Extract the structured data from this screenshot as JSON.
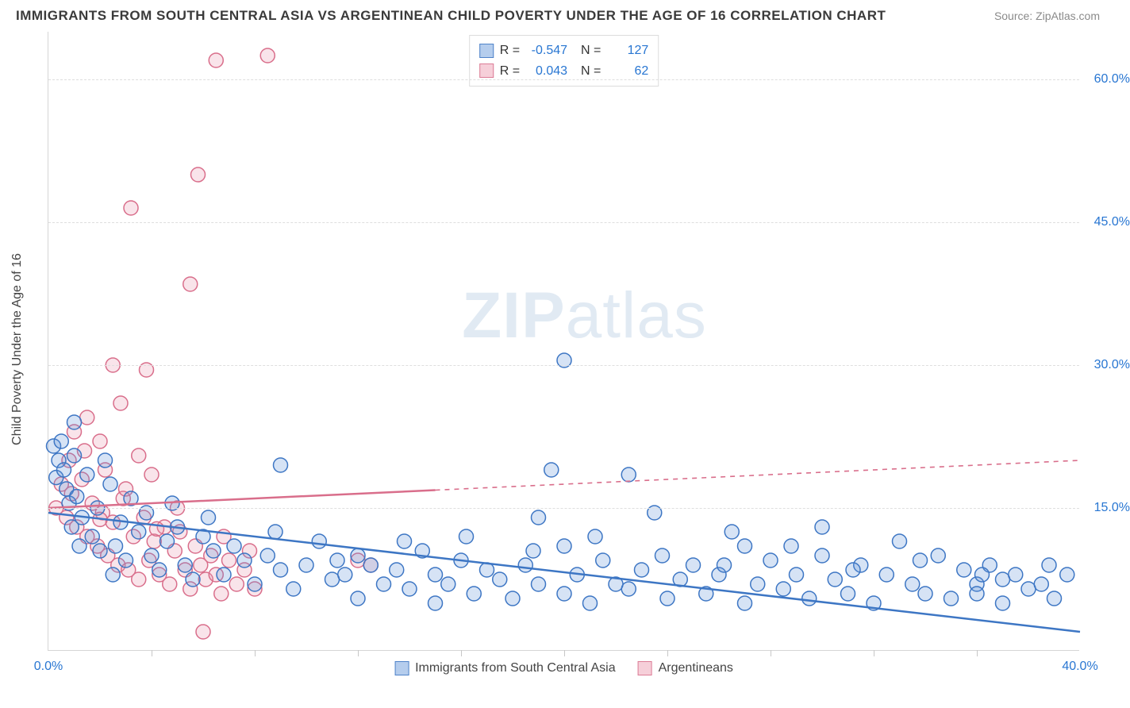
{
  "title": "IMMIGRANTS FROM SOUTH CENTRAL ASIA VS ARGENTINEAN CHILD POVERTY UNDER THE AGE OF 16 CORRELATION CHART",
  "source": "Source: ZipAtlas.com",
  "watermark_a": "ZIP",
  "watermark_b": "atlas",
  "chart": {
    "type": "scatter",
    "background_color": "#ffffff",
    "grid_color": "#dedede",
    "axis_color": "#d6d6d6",
    "ylabel": "Child Poverty Under the Age of 16",
    "ylabel_fontsize": 16,
    "xlim": [
      0,
      40
    ],
    "ylim": [
      0,
      65
    ],
    "y_ticks": [
      15,
      30,
      45,
      60
    ],
    "y_tick_labels": [
      "15.0%",
      "30.0%",
      "45.0%",
      "60.0%"
    ],
    "y_tick_color": "#2876d2",
    "x_min_label": "0.0%",
    "x_max_label": "40.0%",
    "x_label_color": "#2876d2",
    "x_minor_ticks": [
      4,
      8,
      12,
      16,
      20,
      24,
      28,
      32,
      36
    ],
    "marker_radius": 9,
    "marker_stroke_width": 1.5,
    "marker_fill_opacity": 0.25,
    "series": [
      {
        "id": "s1",
        "label": "Immigrants from South Central Asia",
        "color": "#5a8fd6",
        "stroke": "#3d76c4",
        "R": "-0.547",
        "N": "127",
        "trend": {
          "x1": 0,
          "y1": 14.5,
          "x2": 40,
          "y2": 2.0,
          "solid_until_x": 40
        },
        "points": [
          [
            0.2,
            21.5
          ],
          [
            0.3,
            18.2
          ],
          [
            0.4,
            20.0
          ],
          [
            0.5,
            22.0
          ],
          [
            0.6,
            19.0
          ],
          [
            0.7,
            17.0
          ],
          [
            0.8,
            15.5
          ],
          [
            0.9,
            13.0
          ],
          [
            1.0,
            20.5
          ],
          [
            1.1,
            16.2
          ],
          [
            1.3,
            14.0
          ],
          [
            1.5,
            18.5
          ],
          [
            1.7,
            12.0
          ],
          [
            1.9,
            15.0
          ],
          [
            2.0,
            10.5
          ],
          [
            2.2,
            20.0
          ],
          [
            2.4,
            17.5
          ],
          [
            2.6,
            11.0
          ],
          [
            2.8,
            13.5
          ],
          [
            3.0,
            9.5
          ],
          [
            3.2,
            16.0
          ],
          [
            3.5,
            12.5
          ],
          [
            3.8,
            14.5
          ],
          [
            4.0,
            10.0
          ],
          [
            4.3,
            8.5
          ],
          [
            4.6,
            11.5
          ],
          [
            5.0,
            13.0
          ],
          [
            5.3,
            9.0
          ],
          [
            5.6,
            7.5
          ],
          [
            6.0,
            12.0
          ],
          [
            6.4,
            10.5
          ],
          [
            6.8,
            8.0
          ],
          [
            7.2,
            11.0
          ],
          [
            7.6,
            9.5
          ],
          [
            8.0,
            7.0
          ],
          [
            8.5,
            10.0
          ],
          [
            9.0,
            8.5
          ],
          [
            9.0,
            19.5
          ],
          [
            9.5,
            6.5
          ],
          [
            10.0,
            9.0
          ],
          [
            10.5,
            11.5
          ],
          [
            11.0,
            7.5
          ],
          [
            11.5,
            8.0
          ],
          [
            12.0,
            10.0
          ],
          [
            12.0,
            5.5
          ],
          [
            12.5,
            9.0
          ],
          [
            13.0,
            7.0
          ],
          [
            13.5,
            8.5
          ],
          [
            14.0,
            6.5
          ],
          [
            14.5,
            10.5
          ],
          [
            15.0,
            8.0
          ],
          [
            15.0,
            5.0
          ],
          [
            15.5,
            7.0
          ],
          [
            16.0,
            9.5
          ],
          [
            16.5,
            6.0
          ],
          [
            17.0,
            8.5
          ],
          [
            17.5,
            7.5
          ],
          [
            18.0,
            5.5
          ],
          [
            18.5,
            9.0
          ],
          [
            19.0,
            7.0
          ],
          [
            19.0,
            14.0
          ],
          [
            19.5,
            19.0
          ],
          [
            20.0,
            6.0
          ],
          [
            20.0,
            11.0
          ],
          [
            20.5,
            8.0
          ],
          [
            21.0,
            5.0
          ],
          [
            21.5,
            9.5
          ],
          [
            20.0,
            30.5
          ],
          [
            22.0,
            7.0
          ],
          [
            22.5,
            18.5
          ],
          [
            22.5,
            6.5
          ],
          [
            23.0,
            8.5
          ],
          [
            23.5,
            14.5
          ],
          [
            24.0,
            5.5
          ],
          [
            24.5,
            7.5
          ],
          [
            25.0,
            9.0
          ],
          [
            25.5,
            6.0
          ],
          [
            26.0,
            8.0
          ],
          [
            26.5,
            12.5
          ],
          [
            27.0,
            5.0
          ],
          [
            27.0,
            11.0
          ],
          [
            27.5,
            7.0
          ],
          [
            28.0,
            9.5
          ],
          [
            28.5,
            6.5
          ],
          [
            29.0,
            8.0
          ],
          [
            29.5,
            5.5
          ],
          [
            30.0,
            10.0
          ],
          [
            30.0,
            13.0
          ],
          [
            30.5,
            7.5
          ],
          [
            31.0,
            6.0
          ],
          [
            31.5,
            9.0
          ],
          [
            32.0,
            5.0
          ],
          [
            32.5,
            8.0
          ],
          [
            33.0,
            11.5
          ],
          [
            33.5,
            7.0
          ],
          [
            34.0,
            6.0
          ],
          [
            34.5,
            10.0
          ],
          [
            35.0,
            5.5
          ],
          [
            35.5,
            8.5
          ],
          [
            36.0,
            7.0
          ],
          [
            36.0,
            6.0
          ],
          [
            36.5,
            9.0
          ],
          [
            37.0,
            5.0
          ],
          [
            37.0,
            7.5
          ],
          [
            37.5,
            8.0
          ],
          [
            38.0,
            6.5
          ],
          [
            38.5,
            7.0
          ],
          [
            39.0,
            5.5
          ],
          [
            39.5,
            8.0
          ],
          [
            1.0,
            24.0
          ],
          [
            1.2,
            11.0
          ],
          [
            2.5,
            8.0
          ],
          [
            4.8,
            15.5
          ],
          [
            6.2,
            14.0
          ],
          [
            8.8,
            12.5
          ],
          [
            11.2,
            9.5
          ],
          [
            13.8,
            11.5
          ],
          [
            16.2,
            12.0
          ],
          [
            18.8,
            10.5
          ],
          [
            21.2,
            12.0
          ],
          [
            23.8,
            10.0
          ],
          [
            26.2,
            9.0
          ],
          [
            28.8,
            11.0
          ],
          [
            31.2,
            8.5
          ],
          [
            33.8,
            9.5
          ],
          [
            36.2,
            8.0
          ],
          [
            38.8,
            9.0
          ]
        ]
      },
      {
        "id": "s2",
        "label": "Argentineans",
        "color": "#e994aa",
        "stroke": "#d96e8b",
        "R": "0.043",
        "N": "62",
        "trend": {
          "x1": 0,
          "y1": 15.0,
          "x2": 40,
          "y2": 20.0,
          "solid_until_x": 15
        },
        "points": [
          [
            0.3,
            15.0
          ],
          [
            0.5,
            17.5
          ],
          [
            0.7,
            14.0
          ],
          [
            0.9,
            16.5
          ],
          [
            1.1,
            13.0
          ],
          [
            1.3,
            18.0
          ],
          [
            1.5,
            12.0
          ],
          [
            1.7,
            15.5
          ],
          [
            1.9,
            11.0
          ],
          [
            2.1,
            14.5
          ],
          [
            2.3,
            10.0
          ],
          [
            2.5,
            13.5
          ],
          [
            2.7,
            9.0
          ],
          [
            2.9,
            16.0
          ],
          [
            3.1,
            8.5
          ],
          [
            3.3,
            12.0
          ],
          [
            3.5,
            7.5
          ],
          [
            3.7,
            14.0
          ],
          [
            3.9,
            9.5
          ],
          [
            4.1,
            11.5
          ],
          [
            4.3,
            8.0
          ],
          [
            4.5,
            13.0
          ],
          [
            4.7,
            7.0
          ],
          [
            4.9,
            10.5
          ],
          [
            5.1,
            12.5
          ],
          [
            5.3,
            8.5
          ],
          [
            5.5,
            6.5
          ],
          [
            5.7,
            11.0
          ],
          [
            5.9,
            9.0
          ],
          [
            6.1,
            7.5
          ],
          [
            6.3,
            10.0
          ],
          [
            6.5,
            8.0
          ],
          [
            6.7,
            6.0
          ],
          [
            7.0,
            9.5
          ],
          [
            7.3,
            7.0
          ],
          [
            7.6,
            8.5
          ],
          [
            8.0,
            6.5
          ],
          [
            1.0,
            23.0
          ],
          [
            1.5,
            24.5
          ],
          [
            2.0,
            22.0
          ],
          [
            2.8,
            26.0
          ],
          [
            3.5,
            20.5
          ],
          [
            2.5,
            30.0
          ],
          [
            3.8,
            29.5
          ],
          [
            3.2,
            46.5
          ],
          [
            5.5,
            38.5
          ],
          [
            5.8,
            50.0
          ],
          [
            6.5,
            62.0
          ],
          [
            8.5,
            62.5
          ],
          [
            6.0,
            2.0
          ],
          [
            4.0,
            18.5
          ],
          [
            2.2,
            19.0
          ],
          [
            0.8,
            20.0
          ],
          [
            1.4,
            21.0
          ],
          [
            3.0,
            17.0
          ],
          [
            5.0,
            15.0
          ],
          [
            6.8,
            12.0
          ],
          [
            7.8,
            10.5
          ],
          [
            12.0,
            9.5
          ],
          [
            12.5,
            9.0
          ],
          [
            2.0,
            13.8
          ],
          [
            4.2,
            12.8
          ]
        ]
      }
    ],
    "bottom_legend": [
      {
        "color": "#5a8fd6",
        "stroke": "#3d76c4",
        "label": "Immigrants from South Central Asia"
      },
      {
        "color": "#e994aa",
        "stroke": "#d96e8b",
        "label": "Argentineans"
      }
    ]
  }
}
